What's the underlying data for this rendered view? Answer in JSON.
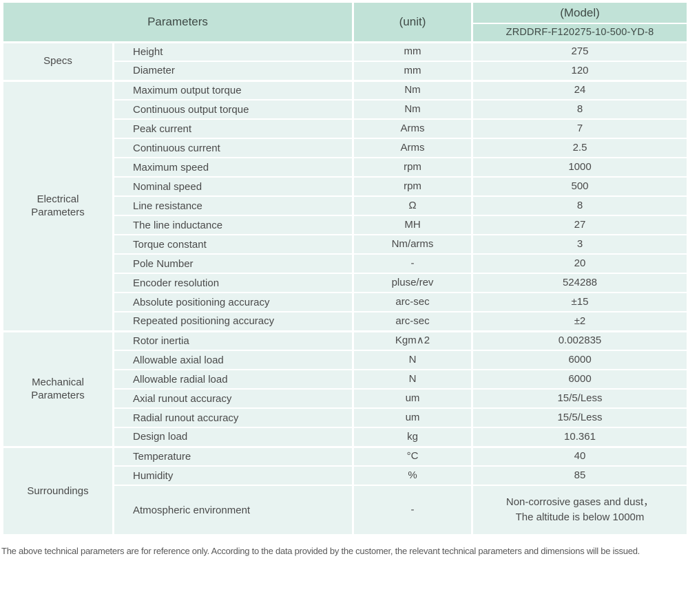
{
  "header": {
    "parameters_label": "Parameters",
    "unit_label": "(unit)",
    "model_label": "(Model)",
    "model_value": "ZRDDRF-F120275-10-500-YD-8"
  },
  "groups": [
    {
      "name": "Specs",
      "rows": [
        {
          "parameter": "Height",
          "unit": "mm",
          "value": "275"
        },
        {
          "parameter": "Diameter",
          "unit": "mm",
          "value": "120"
        }
      ]
    },
    {
      "name": "Electrical\nParameters",
      "rows": [
        {
          "parameter": "Maximum output torque",
          "unit": "Nm",
          "value": "24"
        },
        {
          "parameter": "Continuous output torque",
          "unit": "Nm",
          "value": "8"
        },
        {
          "parameter": "Peak current",
          "unit": "Arms",
          "value": "7"
        },
        {
          "parameter": "Continuous current",
          "unit": "Arms",
          "value": "2.5"
        },
        {
          "parameter": "Maximum speed",
          "unit": "rpm",
          "value": "1000"
        },
        {
          "parameter": "Nominal speed",
          "unit": "rpm",
          "value": "500"
        },
        {
          "parameter": "Line resistance",
          "unit": "Ω",
          "value": "8"
        },
        {
          "parameter": "The line inductance",
          "unit": "MH",
          "value": "27"
        },
        {
          "parameter": "Torque constant",
          "unit": "Nm/arms",
          "value": "3"
        },
        {
          "parameter": "Pole Number",
          "unit": "-",
          "value": "20"
        },
        {
          "parameter": "Encoder resolution",
          "unit": "pluse/rev",
          "value": "524288"
        },
        {
          "parameter": "Absolute positioning accuracy",
          "unit": "arc-sec",
          "value": "±15"
        },
        {
          "parameter": "Repeated positioning accuracy",
          "unit": "arc-sec",
          "value": "±2"
        }
      ]
    },
    {
      "name": "Mechanical\nParameters",
      "rows": [
        {
          "parameter": "Rotor inertia",
          "unit": "Kgm∧2",
          "value": "0.002835"
        },
        {
          "parameter": "Allowable axial load",
          "unit": "N",
          "value": "6000"
        },
        {
          "parameter": "Allowable radial load",
          "unit": "N",
          "value": "6000"
        },
        {
          "parameter": "Axial runout accuracy",
          "unit": "um",
          "value": "15/5/Less"
        },
        {
          "parameter": "Radial runout accuracy",
          "unit": "um",
          "value": "15/5/Less"
        },
        {
          "parameter": "Design load",
          "unit": "kg",
          "value": "10.361"
        }
      ]
    },
    {
      "name": "Surroundings",
      "rows": [
        {
          "parameter": "Temperature",
          "unit": "°C",
          "value": "40"
        },
        {
          "parameter": "Humidity",
          "unit": "%",
          "value": "85"
        },
        {
          "parameter": "Atmospheric environment",
          "unit": "-",
          "value": "Non-corrosive gases and dust，\nThe altitude is below 1000m",
          "tall": true
        }
      ]
    }
  ],
  "footer_note": "The above technical parameters are for reference only. According to the data provided by the customer, the relevant technical parameters and dimensions will be issued.",
  "colors": {
    "header_bg": "#c1e2d7",
    "row_bg": "#e8f3f1",
    "text": "#4a4a4a"
  }
}
